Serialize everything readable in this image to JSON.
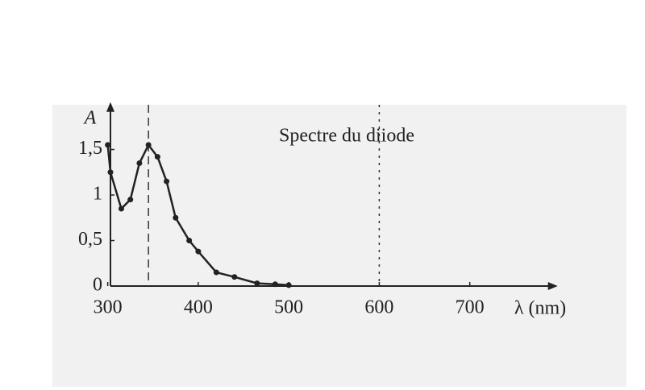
{
  "chart_data": {
    "type": "line",
    "title": "Spectre du diiode",
    "y_label": "A",
    "x_label": "λ (nm)",
    "x": [
      300,
      303,
      315,
      325,
      335,
      345,
      355,
      365,
      375,
      390,
      400,
      420,
      440,
      465,
      485,
      500
    ],
    "values": [
      1.55,
      1.25,
      0.85,
      0.95,
      1.35,
      1.55,
      1.42,
      1.15,
      0.75,
      0.5,
      0.38,
      0.15,
      0.1,
      0.03,
      0.02,
      0.01
    ],
    "color": "#222222",
    "xlim": [
      303,
      790
    ],
    "ylim": [
      0,
      1.95
    ],
    "xticks": [
      300,
      400,
      500,
      600,
      700
    ],
    "yticks": [
      0,
      {
        "value": 0.5,
        "label": "0,5"
      },
      1,
      {
        "value": 1.5,
        "label": "1,5"
      }
    ],
    "vlines": [
      345,
      600
    ]
  }
}
